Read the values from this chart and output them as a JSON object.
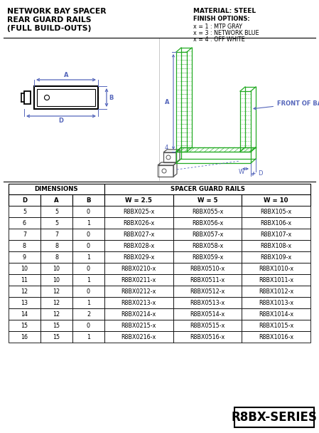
{
  "title_line1": "NETWORK BAY SPACER",
  "title_line2": "REAR GUARD RAILS",
  "title_line3": "(FULL BUILD-OUTS)",
  "material": "MATERIAL: STEEL",
  "finish_title": "FINISH OPTIONS:",
  "finish_options": [
    "x = 1 : MTP GRAY",
    "x = 3 : NETWORK BLUE",
    "x = 4 : OFF WHITE"
  ],
  "series_label": "R8BX-SERIES",
  "front_of_bay_label": "FRONT OF BAY",
  "table_headers_left": [
    "D",
    "A",
    "B"
  ],
  "table_headers_right": [
    "W = 2.5",
    "W = 5",
    "W = 10"
  ],
  "table_group_left": "DIMENSIONS",
  "table_group_right": "SPACER GUARD RAILS",
  "table_rows": [
    [
      "5",
      "5",
      "0",
      "R8BX025-x",
      "R8BX055-x",
      "R8BX105-x"
    ],
    [
      "6",
      "5",
      "1",
      "R8BX026-x",
      "R8BX056-x",
      "R8BX106-x"
    ],
    [
      "7",
      "7",
      "0",
      "R8BX027-x",
      "R8BX057-x",
      "R8BX107-x"
    ],
    [
      "8",
      "8",
      "0",
      "R8BX028-x",
      "R8BX058-x",
      "R8BX108-x"
    ],
    [
      "9",
      "8",
      "1",
      "R8BX029-x",
      "R8BX059-x",
      "R8BX109-x"
    ],
    [
      "10",
      "10",
      "0",
      "R8BX0210-x",
      "R8BX0510-x",
      "R8BX1010-x"
    ],
    [
      "11",
      "10",
      "1",
      "R8BX0211-x",
      "R8BX0511-x",
      "R8BX1011-x"
    ],
    [
      "12",
      "12",
      "0",
      "R8BX0212-x",
      "R8BX0512-x",
      "R8BX1012-x"
    ],
    [
      "13",
      "12",
      "1",
      "R8BX0213-x",
      "R8BX0513-x",
      "R8BX1013-x"
    ],
    [
      "14",
      "12",
      "2",
      "R8BX0214-x",
      "R8BX0514-x",
      "R8BX1014-x"
    ],
    [
      "15",
      "15",
      "0",
      "R8BX0215-x",
      "R8BX0515-x",
      "R8BX1015-x"
    ],
    [
      "16",
      "15",
      "1",
      "R8BX0216-x",
      "R8BX0516-x",
      "R8BX1016-x"
    ]
  ],
  "bg_color": "#f2f2f2",
  "white": "#ffffff",
  "black": "#000000",
  "dim_blue": "#5566bb",
  "green": "#22aa22",
  "gray_draw": "#555555"
}
